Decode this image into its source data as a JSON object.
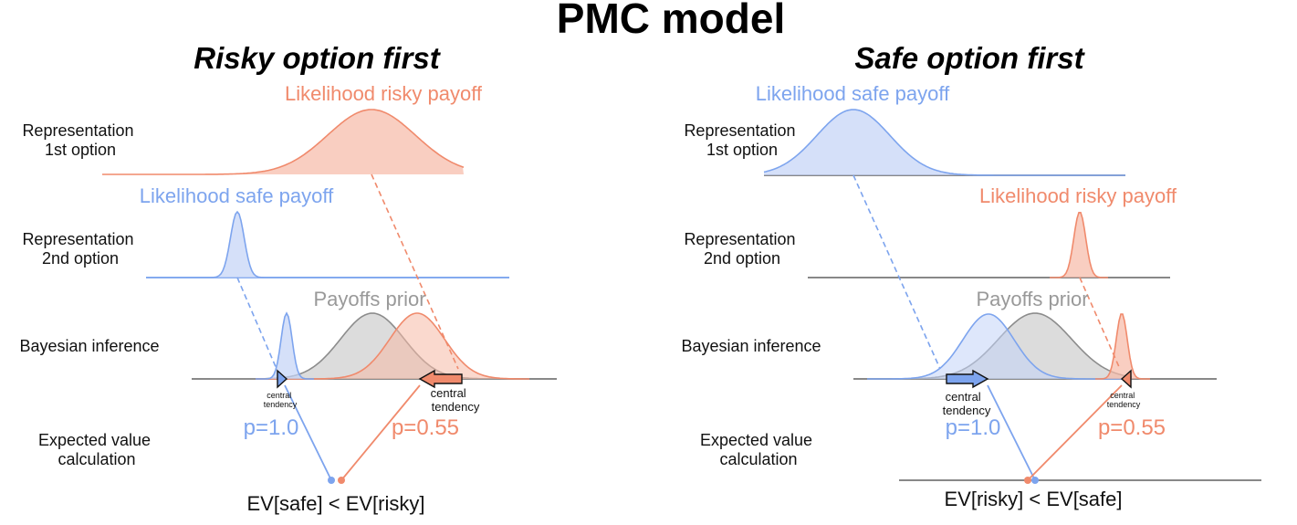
{
  "title": "PMC model",
  "colors": {
    "risky": "#f08a6c",
    "risky_fill": "#f6b9a6",
    "safe": "#7da4ee",
    "safe_fill": "#c3d3f7",
    "prior": "#8c8c8c",
    "prior_fill": "#c4c4c4",
    "axis": "#777777"
  },
  "row_labels": {
    "first_repr": "Representation\n1st option",
    "second_repr": "Representation\n2nd option",
    "bayes": "Bayesian inference",
    "ev": "Expected value\ncalculation"
  },
  "panels": [
    {
      "title": "Risky option first",
      "likelihood_first": "Likelihood risky payoff",
      "likelihood_second": "Likelihood safe payoff",
      "prior_label": "Payoffs prior",
      "central_tendency_safe": "central\ntendency",
      "central_tendency_risky": "central\ntendency",
      "p_safe": "p=1.0",
      "p_risky": "p=0.55",
      "comparison": "EV[safe] < EV[risky]"
    },
    {
      "title": "Safe option first",
      "likelihood_first": "Likelihood safe payoff",
      "likelihood_second": "Likelihood risky payoff",
      "prior_label": "Payoffs prior",
      "central_tendency_safe": "central\ntendency",
      "central_tendency_risky": "central\ntendency",
      "p_safe": "p=1.0",
      "p_risky": "p=0.55",
      "comparison": "EV[risky] < EV[safe]"
    }
  ]
}
